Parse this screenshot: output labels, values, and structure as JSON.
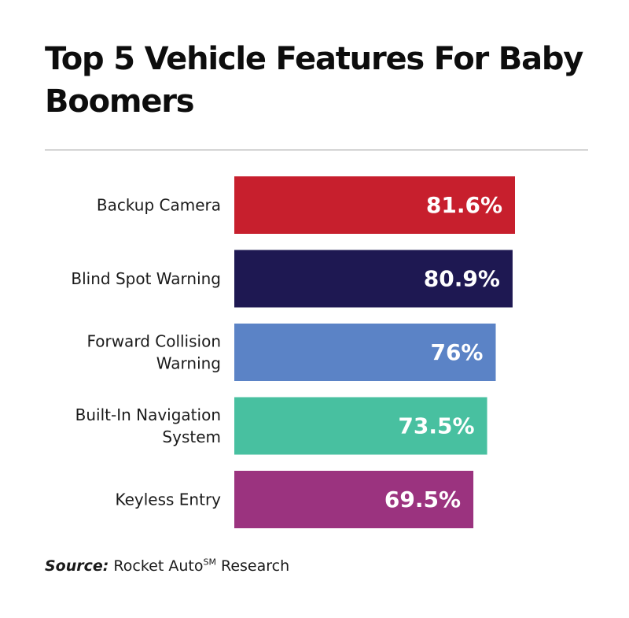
{
  "chart_data": {
    "type": "bar",
    "orientation": "horizontal",
    "title": "Top 5 Vehicle Features For Baby Boomers",
    "categories": [
      "Backup Camera",
      "Blind Spot Warning",
      "Forward Collision Warning",
      "Built-In Navigation System",
      "Keyless Entry"
    ],
    "category_lines": [
      [
        "Backup Camera"
      ],
      [
        "Blind Spot Warning"
      ],
      [
        "Forward Collision",
        "Warning"
      ],
      [
        "Built-In Navigation",
        "System"
      ],
      [
        "Keyless Entry"
      ]
    ],
    "values": [
      81.6,
      80.9,
      76,
      73.5,
      69.5
    ],
    "value_labels": [
      "81.6%",
      "80.9%",
      "76%",
      "73.5%",
      "69.5%"
    ],
    "colors": [
      "#c71f2d",
      "#1e1852",
      "#5b83c6",
      "#48c0a0",
      "#9b337f"
    ],
    "grid": false,
    "legend": "none"
  },
  "source": {
    "label": "Source:",
    "text_before": " Rocket Auto",
    "superscript": "SM",
    "text_after": " Research"
  }
}
